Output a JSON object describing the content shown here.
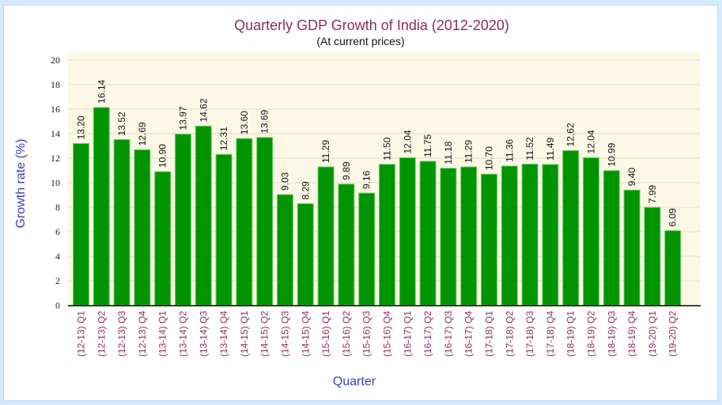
{
  "chart_data": {
    "type": "bar",
    "title": "Quarterly GDP Growth of India (2012-2020)",
    "subtitle": "(At current prices)",
    "xlabel": "Quarter",
    "ylabel": "Growth rate (%)",
    "ylim": [
      0,
      20
    ],
    "yticks": [
      0,
      2,
      4,
      6,
      8,
      10,
      12,
      14,
      16,
      18,
      20
    ],
    "grid": true,
    "legend": "none",
    "colors": {
      "bar": "#009400",
      "bar_border": "#6fcf6f",
      "plot_background": "#fdf8e6",
      "gridline": "#e2ddc8",
      "title": "#8b2d5b",
      "axis_title": "#3b3fb0",
      "category_label": "#8b2d5b"
    },
    "categories": [
      "(12-13) Q1",
      "(12-13) Q2",
      "(12-13) Q3",
      "(12-13) Q4",
      "(13-14) Q1",
      "(13-14) Q2",
      "(13-14) Q3",
      "(13-14) Q4",
      "(14-15) Q1",
      "(14-15) Q2",
      "(14-15) Q3",
      "(14-15) Q4",
      "(15-16) Q1",
      "(15-16) Q2",
      "(15-16) Q3",
      "(15-16) Q4",
      "(16-17) Q1",
      "(16-17) Q2",
      "(16-17) Q3",
      "(16-17) Q4",
      "(17-18) Q1",
      "(17-18) Q2",
      "(17-18) Q3",
      "(17-18) Q4",
      "(18-19) Q1",
      "(18-19) Q2",
      "(18-19) Q3",
      "(18-19) Q4",
      "(19-20) Q1",
      "(19-20) Q2"
    ],
    "values": [
      13.2,
      16.14,
      13.52,
      12.69,
      10.9,
      13.97,
      14.62,
      12.31,
      13.6,
      13.69,
      9.03,
      8.29,
      11.29,
      9.89,
      9.16,
      11.5,
      12.04,
      11.75,
      11.18,
      11.29,
      10.7,
      11.36,
      11.52,
      11.49,
      12.62,
      12.04,
      10.99,
      9.4,
      7.99,
      6.09
    ],
    "value_labels": [
      "13.20",
      "16.14",
      "13.52",
      "12.69",
      "10.90",
      "13.97",
      "14.62",
      "12.31",
      "13.60",
      "13.69",
      "9.03",
      "8.29",
      "11.29",
      "9.89",
      "9.16",
      "11.50",
      "12.04",
      "11.75",
      "11.18",
      "11.29",
      "10.70",
      "11.36",
      "11.52",
      "11.49",
      "12.62",
      "12.04",
      "10.99",
      "9.40",
      "7.99",
      "6.09"
    ]
  }
}
